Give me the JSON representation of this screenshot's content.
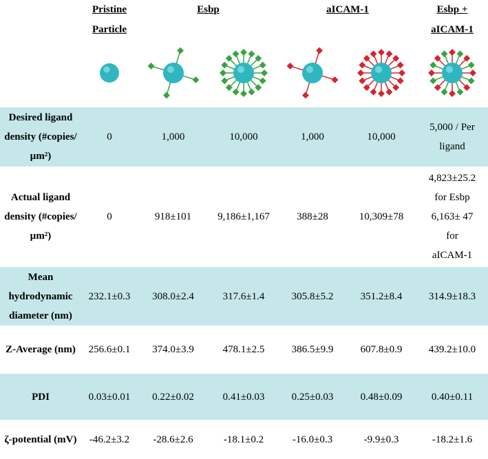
{
  "table": {
    "header": [
      "Pristine Particle",
      "Esbp",
      "aICAM-1",
      "Esbp + aICAM-1"
    ],
    "rows": [
      [
        "Desired ligand density (#copies/µm²)",
        "0",
        "1,000",
        "10,000",
        "1,000",
        "10,000",
        "5,000 / Per ligand"
      ],
      [
        "Actual ligand density (#copies/µm²)",
        "0",
        "918±101",
        "9,186±1,167",
        "388±28",
        "10,309±78",
        [
          "4,823±25.2",
          "for Esbp",
          "6,163± 47",
          "for",
          "aICAM-1"
        ]
      ],
      [
        "Mean hydrodynamic diameter (nm)",
        "232.1±0.3",
        "308.0±2.4",
        "317.6±1.4",
        "305.8±5.2",
        "351.2±8.4",
        "314.9±18.3"
      ],
      [
        "Z-Average (nm)",
        "256.6±0.1",
        "374.0±3.9",
        "478.1±2.5",
        "386.5±9.9",
        "607.8±0.9",
        "439.2±10.0"
      ],
      [
        "PDI",
        "0.03±0.01",
        "0.22±0.02",
        "0.41±0.03",
        "0.25±0.03",
        "0.48±0.09",
        "0.40±0.11"
      ],
      [
        "ζ-potential (mV)",
        "-46.2±3.2",
        "-28.6±2.6",
        "-18.1±0.2",
        "-16.0±0.3",
        "-9.9±0.3",
        "-18.2±1.6"
      ]
    ]
  }
}
